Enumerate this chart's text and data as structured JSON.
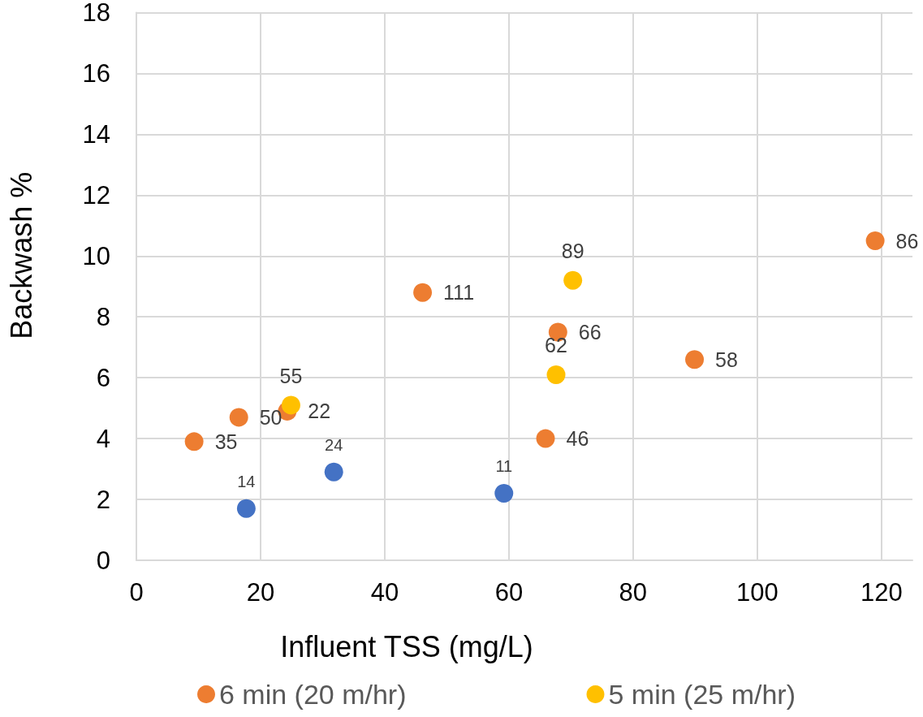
{
  "chart_data": {
    "type": "scatter",
    "xlabel": "Influent TSS (mg/L)",
    "ylabel": "Backwash %",
    "xlim": [
      0,
      125
    ],
    "xticks": [
      0,
      20,
      40,
      60,
      80,
      100,
      120
    ],
    "ylim": [
      0,
      18
    ],
    "yticks": [
      0,
      2,
      4,
      6,
      8,
      10,
      12,
      14,
      16,
      18
    ],
    "grid": true,
    "legend": "bottom",
    "marker": "circle",
    "series": [
      {
        "name": "6 min (20 m/hr)",
        "color": "#ed7d31",
        "x": [
          9.3,
          16.5,
          24.3,
          46.1,
          67.9,
          65.9,
          89.9,
          119.0
        ],
        "values": [
          3.9,
          4.7,
          4.9,
          8.8,
          7.5,
          4.0,
          6.6,
          10.5
        ]
      },
      {
        "name": "5 min (25 m/hr)",
        "color": "#ffc000",
        "x": [
          24.9,
          70.3,
          67.6
        ],
        "values": [
          5.1,
          9.2,
          6.1
        ]
      },
      {
        "color": "#4472c4",
        "x": [
          17.7,
          31.8,
          59.2
        ],
        "values": [
          1.7,
          2.9,
          2.2
        ]
      }
    ],
    "annotations": [
      {
        "text": "35",
        "x": 9.3,
        "y": 3.9
      },
      {
        "text": "50",
        "x": 16.5,
        "y": 4.7
      },
      {
        "text": "22",
        "x": 24.3,
        "y": 4.9
      },
      {
        "text": "111",
        "x": 46.1,
        "y": 8.8
      },
      {
        "text": "66",
        "x": 67.9,
        "y": 7.5
      },
      {
        "text": "46",
        "x": 65.9,
        "y": 4.0
      },
      {
        "text": "58",
        "x": 89.9,
        "y": 6.6
      },
      {
        "text": "86",
        "x": 119.0,
        "y": 10.5
      },
      {
        "text": "55",
        "x": 24.9,
        "y": 5.1
      },
      {
        "text": "89",
        "x": 70.3,
        "y": 9.2
      },
      {
        "text": "62",
        "x": 67.6,
        "y": 6.1
      },
      {
        "text": "14",
        "x": 17.7,
        "y": 1.7
      },
      {
        "text": "24",
        "x": 31.8,
        "y": 2.9
      },
      {
        "text": "11",
        "x": 59.2,
        "y": 2.2
      }
    ]
  }
}
